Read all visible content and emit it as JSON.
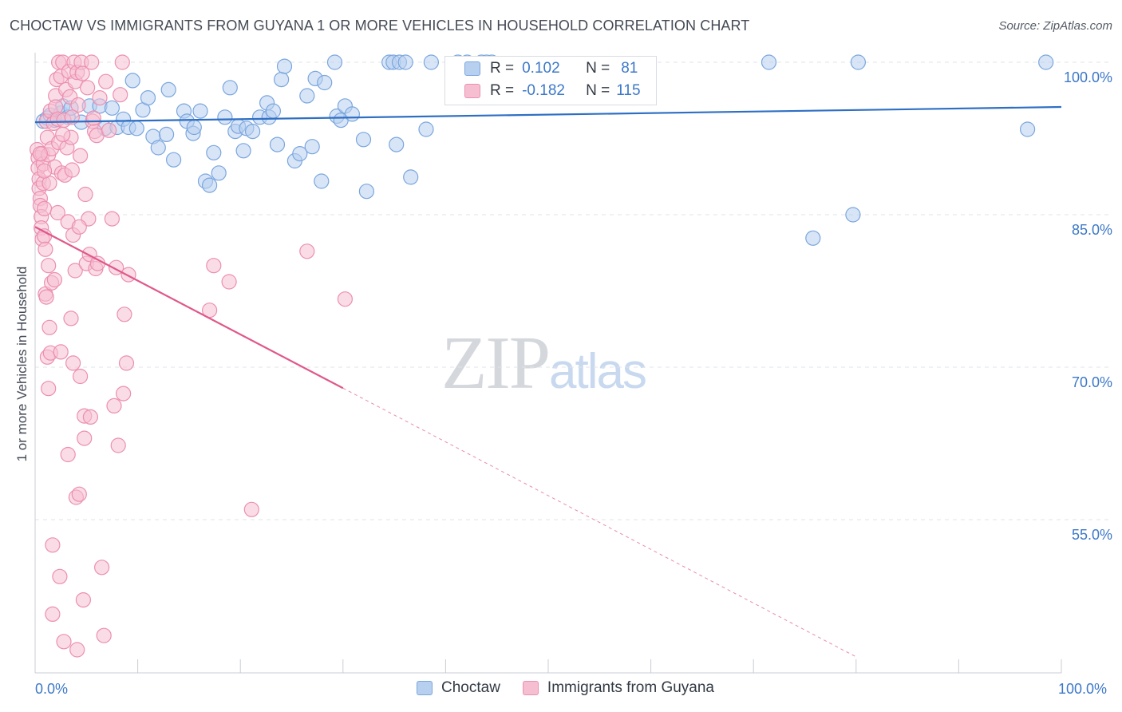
{
  "title": "CHOCTAW VS IMMIGRANTS FROM GUYANA 1 OR MORE VEHICLES IN HOUSEHOLD CORRELATION CHART",
  "source": "Source: ZipAtlas.com",
  "watermark": {
    "zip": "ZIP",
    "atlas": "atlas"
  },
  "legend": {
    "r_label": "R =",
    "n_label": "N =",
    "series": [
      {
        "name": "Choctaw",
        "r": "0.102",
        "n": "81"
      },
      {
        "name": "Immigrants from Guyana",
        "r": "-0.182",
        "n": "115"
      }
    ]
  },
  "colors": {
    "blue": "#3c78c8",
    "blue_fill": "#b8d0f0",
    "blue_edge": "#7aa6de",
    "blue_line": "#2e6fc4",
    "pink_fill": "#f6bfd1",
    "pink_edge": "#ec8fb0",
    "pink_line": "#e0588a",
    "grid": "#dfe3e9",
    "tick_text": "#3c78c8"
  },
  "chart_data": {
    "type": "scatter",
    "title": "CHOCTAW VS IMMIGRANTS FROM GUYANA 1 OR MORE VEHICLES IN HOUSEHOLD CORRELATION CHART",
    "xlabel": "",
    "ylabel": "1 or more Vehicles in Household",
    "xlim": [
      0,
      100
    ],
    "ylim": [
      41.5,
      101.5
    ],
    "x_tick_labels": [
      "0.0%",
      "100.0%"
    ],
    "y_ticks": [
      100,
      85,
      70,
      55
    ],
    "y_tick_labels": [
      "100.0%",
      "85.0%",
      "70.0%",
      "55.0%"
    ],
    "grid": true,
    "series": [
      {
        "name": "Choctaw",
        "color": "blue",
        "trend": {
          "x": [
            0,
            100
          ],
          "y": [
            94.1,
            95.6
          ],
          "solid_to": 100
        },
        "points": [
          [
            0.8,
            94.2
          ],
          [
            1.2,
            94.5
          ],
          [
            1.5,
            94.8
          ],
          [
            1.9,
            94.3
          ],
          [
            2.5,
            95.0
          ],
          [
            2.7,
            95.7
          ],
          [
            3.2,
            94.6
          ],
          [
            3.5,
            95.5
          ],
          [
            4.5,
            94.1
          ],
          [
            5.3,
            95.7
          ],
          [
            6.3,
            95.7
          ],
          [
            6.8,
            93.5
          ],
          [
            7.5,
            95.5
          ],
          [
            8.0,
            93.6
          ],
          [
            8.6,
            94.4
          ],
          [
            9.1,
            93.6
          ],
          [
            9.5,
            98.2
          ],
          [
            9.9,
            93.5
          ],
          [
            10.5,
            95.3
          ],
          [
            11.0,
            96.5
          ],
          [
            11.5,
            92.7
          ],
          [
            12.0,
            91.6
          ],
          [
            12.8,
            92.9
          ],
          [
            13.0,
            97.3
          ],
          [
            13.5,
            90.4
          ],
          [
            14.5,
            95.2
          ],
          [
            14.8,
            94.2
          ],
          [
            15.4,
            93.0
          ],
          [
            15.5,
            93.6
          ],
          [
            16.1,
            95.2
          ],
          [
            16.6,
            88.3
          ],
          [
            17.0,
            87.9
          ],
          [
            17.4,
            91.1
          ],
          [
            17.9,
            89.1
          ],
          [
            18.5,
            94.6
          ],
          [
            19.0,
            97.5
          ],
          [
            19.5,
            93.2
          ],
          [
            19.8,
            93.7
          ],
          [
            20.3,
            91.3
          ],
          [
            20.6,
            93.5
          ],
          [
            21.2,
            93.2
          ],
          [
            21.9,
            94.6
          ],
          [
            22.6,
            96.0
          ],
          [
            22.8,
            94.6
          ],
          [
            23.2,
            95.2
          ],
          [
            23.6,
            91.9
          ],
          [
            24.0,
            98.3
          ],
          [
            24.3,
            99.6
          ],
          [
            25.3,
            90.3
          ],
          [
            25.8,
            91.0
          ],
          [
            26.5,
            96.7
          ],
          [
            27.0,
            91.7
          ],
          [
            27.3,
            98.4
          ],
          [
            27.9,
            88.3
          ],
          [
            28.2,
            98.0
          ],
          [
            29.2,
            100.0
          ],
          [
            29.4,
            94.7
          ],
          [
            29.8,
            94.3
          ],
          [
            30.2,
            95.7
          ],
          [
            30.9,
            94.9
          ],
          [
            32.0,
            92.4
          ],
          [
            32.3,
            87.3
          ],
          [
            34.5,
            100.0
          ],
          [
            34.9,
            100.0
          ],
          [
            35.2,
            91.9
          ],
          [
            35.5,
            100.0
          ],
          [
            36.1,
            100.0
          ],
          [
            36.6,
            88.7
          ],
          [
            38.1,
            93.4
          ],
          [
            38.6,
            100.0
          ],
          [
            41.2,
            100.0
          ],
          [
            42.1,
            100.0
          ],
          [
            43.5,
            100.0
          ],
          [
            44.0,
            100.0
          ],
          [
            44.5,
            100.0
          ],
          [
            75.8,
            82.7
          ],
          [
            79.7,
            85.0
          ],
          [
            71.5,
            100.0
          ],
          [
            80.2,
            100.0
          ],
          [
            96.7,
            93.4
          ],
          [
            98.5,
            100.0
          ]
        ]
      },
      {
        "name": "Immigrants from Guyana",
        "color": "pink",
        "trend": {
          "x": [
            0,
            80
          ],
          "y": [
            83.8,
            41.5
          ],
          "solid_to": 30
        },
        "points": [
          [
            0.2,
            91.4
          ],
          [
            0.3,
            90.6
          ],
          [
            0.3,
            89.6
          ],
          [
            0.4,
            88.5
          ],
          [
            0.4,
            87.6
          ],
          [
            0.5,
            86.6
          ],
          [
            0.5,
            85.9
          ],
          [
            0.6,
            84.8
          ],
          [
            0.6,
            83.7
          ],
          [
            0.7,
            82.6
          ],
          [
            0.7,
            91.0
          ],
          [
            0.8,
            90.0
          ],
          [
            0.8,
            88.1
          ],
          [
            0.9,
            85.6
          ],
          [
            0.9,
            82.9
          ],
          [
            1.0,
            81.6
          ],
          [
            1.0,
            77.2
          ],
          [
            1.1,
            94.2
          ],
          [
            1.1,
            76.9
          ],
          [
            1.2,
            92.6
          ],
          [
            1.2,
            71.0
          ],
          [
            1.3,
            90.9
          ],
          [
            1.3,
            67.9
          ],
          [
            1.4,
            88.1
          ],
          [
            1.4,
            73.9
          ],
          [
            1.5,
            71.4
          ],
          [
            1.5,
            95.2
          ],
          [
            1.6,
            91.5
          ],
          [
            1.6,
            78.3
          ],
          [
            1.7,
            52.5
          ],
          [
            1.7,
            45.7
          ],
          [
            1.8,
            94.0
          ],
          [
            1.9,
            89.7
          ],
          [
            1.9,
            78.6
          ],
          [
            2.0,
            96.7
          ],
          [
            2.0,
            95.6
          ],
          [
            2.1,
            98.3
          ],
          [
            2.2,
            94.4
          ],
          [
            2.2,
            85.2
          ],
          [
            2.3,
            100.0
          ],
          [
            2.3,
            92.1
          ],
          [
            2.4,
            49.4
          ],
          [
            2.5,
            98.6
          ],
          [
            2.5,
            71.5
          ],
          [
            2.6,
            89.1
          ],
          [
            2.7,
            100.0
          ],
          [
            2.8,
            94.3
          ],
          [
            2.8,
            43.0
          ],
          [
            2.9,
            88.9
          ],
          [
            3.0,
            97.3
          ],
          [
            3.1,
            91.6
          ],
          [
            3.2,
            84.3
          ],
          [
            3.2,
            61.4
          ],
          [
            3.3,
            99.1
          ],
          [
            3.4,
            96.6
          ],
          [
            3.5,
            92.6
          ],
          [
            3.5,
            74.8
          ],
          [
            3.6,
            89.4
          ],
          [
            3.7,
            83.0
          ],
          [
            3.7,
            70.4
          ],
          [
            3.8,
            100.0
          ],
          [
            3.9,
            98.1
          ],
          [
            3.9,
            79.5
          ],
          [
            4.0,
            57.2
          ],
          [
            4.1,
            99.0
          ],
          [
            4.1,
            42.2
          ],
          [
            4.2,
            95.8
          ],
          [
            4.3,
            57.5
          ],
          [
            4.4,
            90.8
          ],
          [
            4.4,
            69.1
          ],
          [
            4.5,
            100.0
          ],
          [
            4.6,
            98.9
          ],
          [
            4.7,
            47.1
          ],
          [
            4.8,
            65.2
          ],
          [
            4.8,
            63.0
          ],
          [
            4.9,
            87.0
          ],
          [
            5.0,
            80.2
          ],
          [
            5.1,
            97.5
          ],
          [
            5.2,
            84.6
          ],
          [
            5.3,
            81.1
          ],
          [
            5.4,
            65.1
          ],
          [
            5.5,
            100.0
          ],
          [
            5.6,
            94.2
          ],
          [
            5.8,
            93.2
          ],
          [
            5.9,
            79.7
          ],
          [
            6.0,
            92.8
          ],
          [
            6.1,
            80.2
          ],
          [
            6.3,
            96.5
          ],
          [
            6.5,
            50.3
          ],
          [
            6.7,
            43.6
          ],
          [
            6.9,
            98.1
          ],
          [
            7.2,
            93.3
          ],
          [
            7.5,
            84.6
          ],
          [
            7.7,
            66.2
          ],
          [
            7.9,
            79.8
          ],
          [
            8.1,
            62.3
          ],
          [
            8.3,
            96.8
          ],
          [
            8.5,
            100.0
          ],
          [
            8.6,
            67.4
          ],
          [
            8.7,
            75.2
          ],
          [
            8.9,
            70.4
          ],
          [
            9.1,
            79.1
          ],
          [
            17.0,
            75.6
          ],
          [
            17.4,
            80.0
          ],
          [
            18.9,
            78.4
          ],
          [
            21.1,
            56.0
          ],
          [
            26.5,
            81.4
          ],
          [
            30.2,
            76.7
          ],
          [
            3.6,
            94.6
          ],
          [
            4.3,
            83.8
          ],
          [
            1.3,
            80.0
          ],
          [
            0.9,
            89.3
          ],
          [
            2.7,
            92.9
          ],
          [
            0.5,
            91.0
          ],
          [
            5.7,
            94.5
          ]
        ]
      }
    ]
  }
}
